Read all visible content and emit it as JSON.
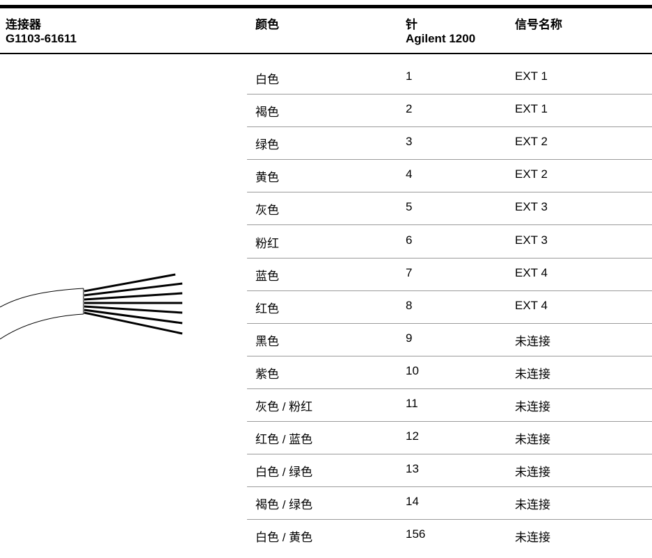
{
  "header": {
    "connector": "连接器",
    "part_number": "G1103-61611",
    "color": "颜色",
    "pin": "针",
    "pin_model": "Agilent 1200",
    "signal": "信号名称"
  },
  "rows": [
    [
      "白色",
      1,
      "EXT 1"
    ],
    [
      "褐色",
      2,
      "EXT 1"
    ],
    [
      "绿色",
      3,
      "EXT 2"
    ],
    [
      "黄色",
      4,
      "EXT 2"
    ],
    [
      "灰色",
      5,
      "EXT 3"
    ],
    [
      "粉红",
      6,
      "EXT 3"
    ],
    [
      "蓝色",
      7,
      "EXT 4"
    ],
    [
      "红色",
      8,
      "EXT 4"
    ],
    [
      "黑色",
      9,
      "未连接"
    ],
    [
      "紫色",
      10,
      "未连接"
    ],
    [
      "灰色 / 粉红",
      11,
      "未连接"
    ],
    [
      "红色 / 蓝色",
      12,
      "未连接"
    ],
    [
      "白色 / 绿色",
      13,
      "未连接"
    ],
    [
      "褐色 / 绿色",
      14,
      "未连接"
    ],
    [
      "白色 / 黄色",
      156,
      "未连接"
    ]
  ]
}
